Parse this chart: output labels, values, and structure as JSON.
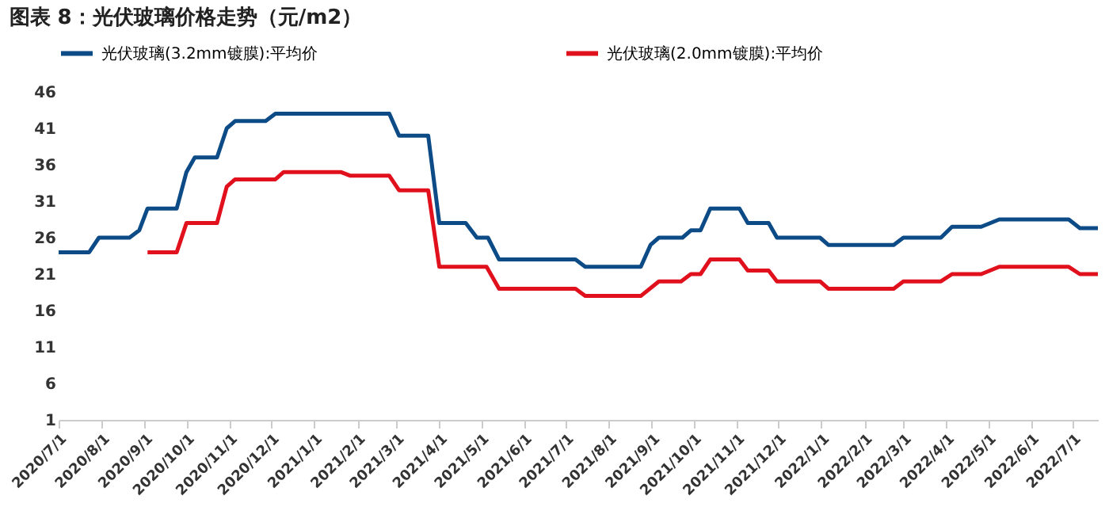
{
  "chart_data": {
    "type": "line",
    "title": "图表 8：光伏玻璃价格走势（元/m2）",
    "legend": "top",
    "grid": false,
    "line_style": "solid",
    "marker": "none",
    "xlim": [
      "2020-07-01",
      "2022-07-19"
    ],
    "xticks": [
      {
        "value": "2020-07-01",
        "label": "2020/7/1"
      },
      {
        "value": "2020-08-01",
        "label": "2020/8/1"
      },
      {
        "value": "2020-09-01",
        "label": "2020/9/1"
      },
      {
        "value": "2020-10-01",
        "label": "2020/10/1"
      },
      {
        "value": "2020-11-01",
        "label": "2020/11/1"
      },
      {
        "value": "2020-12-01",
        "label": "2020/12/1"
      },
      {
        "value": "2021-01-01",
        "label": "2021/1/1"
      },
      {
        "value": "2021-02-01",
        "label": "2021/2/1"
      },
      {
        "value": "2021-03-01",
        "label": "2021/3/1"
      },
      {
        "value": "2021-04-01",
        "label": "2021/4/1"
      },
      {
        "value": "2021-05-01",
        "label": "2021/5/1"
      },
      {
        "value": "2021-06-01",
        "label": "2021/6/1"
      },
      {
        "value": "2021-07-01",
        "label": "2021/7/1"
      },
      {
        "value": "2021-08-01",
        "label": "2021/8/1"
      },
      {
        "value": "2021-09-01",
        "label": "2021/9/1"
      },
      {
        "value": "2021-10-01",
        "label": "2021/10/1"
      },
      {
        "value": "2021-11-01",
        "label": "2021/11/1"
      },
      {
        "value": "2021-12-01",
        "label": "2021/12/1"
      },
      {
        "value": "2022-01-01",
        "label": "2022/1/1"
      },
      {
        "value": "2022-02-01",
        "label": "2022/2/1"
      },
      {
        "value": "2022-03-01",
        "label": "2022/3/1"
      },
      {
        "value": "2022-04-01",
        "label": "2022/4/1"
      },
      {
        "value": "2022-05-01",
        "label": "2022/5/1"
      },
      {
        "value": "2022-06-01",
        "label": "2022/6/1"
      },
      {
        "value": "2022-07-01",
        "label": "2022/7/1"
      }
    ],
    "ylim": [
      1,
      46
    ],
    "yticks": [
      1,
      6,
      11,
      16,
      21,
      26,
      31,
      36,
      41,
      46
    ],
    "series": [
      {
        "name": "光伏玻璃(3.2mm镀膜):平均价",
        "color": "#0d4b87",
        "x": [
          "2020-07-01",
          "2020-07-23",
          "2020-07-30",
          "2020-08-21",
          "2020-08-28",
          "2020-09-03",
          "2020-09-24",
          "2020-10-01",
          "2020-10-07",
          "2020-10-23",
          "2020-10-30",
          "2020-11-05",
          "2020-11-27",
          "2020-12-04",
          "2021-02-24",
          "2021-03-03",
          "2021-03-24",
          "2021-04-01",
          "2021-04-20",
          "2021-04-28",
          "2021-05-06",
          "2021-05-14",
          "2021-07-08",
          "2021-07-15",
          "2021-08-24",
          "2021-08-31",
          "2021-09-06",
          "2021-09-23",
          "2021-09-29",
          "2021-10-06",
          "2021-10-13",
          "2021-11-03",
          "2021-11-09",
          "2021-11-24",
          "2021-11-30",
          "2021-12-31",
          "2022-01-06",
          "2022-02-22",
          "2022-03-01",
          "2022-03-28",
          "2022-04-05",
          "2022-04-26",
          "2022-05-09",
          "2022-06-28",
          "2022-07-06",
          "2022-07-19"
        ],
        "values": [
          24,
          24,
          26,
          26,
          27,
          30,
          30,
          35,
          37,
          37,
          41,
          42,
          42,
          43,
          43,
          40,
          40,
          28,
          28,
          26,
          26,
          23,
          23,
          22,
          22,
          25,
          26,
          26,
          27,
          27,
          30,
          30,
          28,
          28,
          26,
          26,
          25,
          25,
          26,
          26,
          27.5,
          27.5,
          28.5,
          28.5,
          27.3,
          27.3
        ]
      },
      {
        "name": "光伏玻璃(2.0mm镀膜):平均价",
        "color": "#e0101c",
        "x": [
          "2020-09-03",
          "2020-09-24",
          "2020-10-01",
          "2020-10-23",
          "2020-10-30",
          "2020-11-05",
          "2020-12-04",
          "2020-12-10",
          "2021-01-20",
          "2021-01-27",
          "2021-02-24",
          "2021-03-03",
          "2021-03-24",
          "2021-04-01",
          "2021-05-05",
          "2021-05-14",
          "2021-07-08",
          "2021-07-15",
          "2021-08-24",
          "2021-09-06",
          "2021-09-22",
          "2021-09-29",
          "2021-10-06",
          "2021-10-13",
          "2021-11-03",
          "2021-11-09",
          "2021-11-24",
          "2021-11-30",
          "2021-12-31",
          "2022-01-06",
          "2022-02-22",
          "2022-03-01",
          "2022-03-28",
          "2022-04-05",
          "2022-04-26",
          "2022-05-09",
          "2022-06-28",
          "2022-07-06",
          "2022-07-19"
        ],
        "values": [
          24,
          24,
          28,
          28,
          33,
          34,
          34,
          35,
          35,
          34.5,
          34.5,
          32.5,
          32.5,
          22,
          22,
          19,
          19,
          18,
          18,
          20,
          20,
          21,
          21,
          23,
          23,
          21.5,
          21.5,
          20,
          20,
          19,
          19,
          20,
          20,
          21,
          21,
          22,
          22,
          21,
          21
        ]
      }
    ]
  }
}
